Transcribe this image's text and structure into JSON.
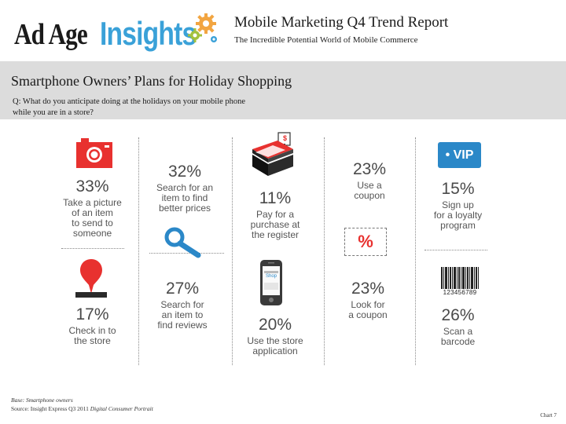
{
  "header": {
    "logo_part1": "Ad Age",
    "logo_part2": "Insights",
    "title": "Mobile Marketing Q4 Trend Report",
    "subtitle": "The Incredible Potential World of Mobile Commerce"
  },
  "banner": {
    "title": "Smartphone Owners’ Plans for Holiday Shopping",
    "question_line1": "Q: What do you anticipate doing at the holidays on your mobile phone",
    "question_line2": "while you are in a store?"
  },
  "stats": [
    {
      "pct": "33%",
      "label": [
        "Take a picture",
        "of an item",
        "to send to",
        "someone"
      ]
    },
    {
      "pct": "32%",
      "label": [
        "Search for an",
        "item to find",
        "better prices"
      ]
    },
    {
      "pct": "11%",
      "label": [
        "Pay for a",
        "purchase at",
        "the register"
      ]
    },
    {
      "pct": "23%",
      "label": [
        "Use a",
        "coupon"
      ]
    },
    {
      "pct": "15%",
      "label": [
        "Sign up",
        "for a loyalty",
        "program"
      ]
    },
    {
      "pct": "17%",
      "label": [
        "Check in to",
        "the store"
      ]
    },
    {
      "pct": "27%",
      "label": [
        "Search for",
        "an item to",
        "find reviews"
      ]
    },
    {
      "pct": "20%",
      "label": [
        "Use the store",
        "application"
      ]
    },
    {
      "pct": "23%",
      "label": [
        "Look for",
        "a coupon"
      ]
    },
    {
      "pct": "26%",
      "label": [
        "Scan a",
        "barcode"
      ]
    }
  ],
  "icons": {
    "register_price": "$",
    "vip": "• VIP",
    "percent": "%",
    "barcode_number": "123456789",
    "phone_screen": "Shop"
  },
  "footer": {
    "base": "Base: Smartphone owners",
    "source_label": "Source: Insight Express Q3 2011 ",
    "source_title": "Digital Consumer Portrait",
    "chart": "Chart 7"
  },
  "colors": {
    "accent_red": "#e8312f",
    "accent_blue": "#2b88c8",
    "logo_blue": "#3aa1d8",
    "gear_orange": "#f2a541",
    "gear_green": "#a4c13c",
    "banner_gray": "#dcdcdc"
  }
}
